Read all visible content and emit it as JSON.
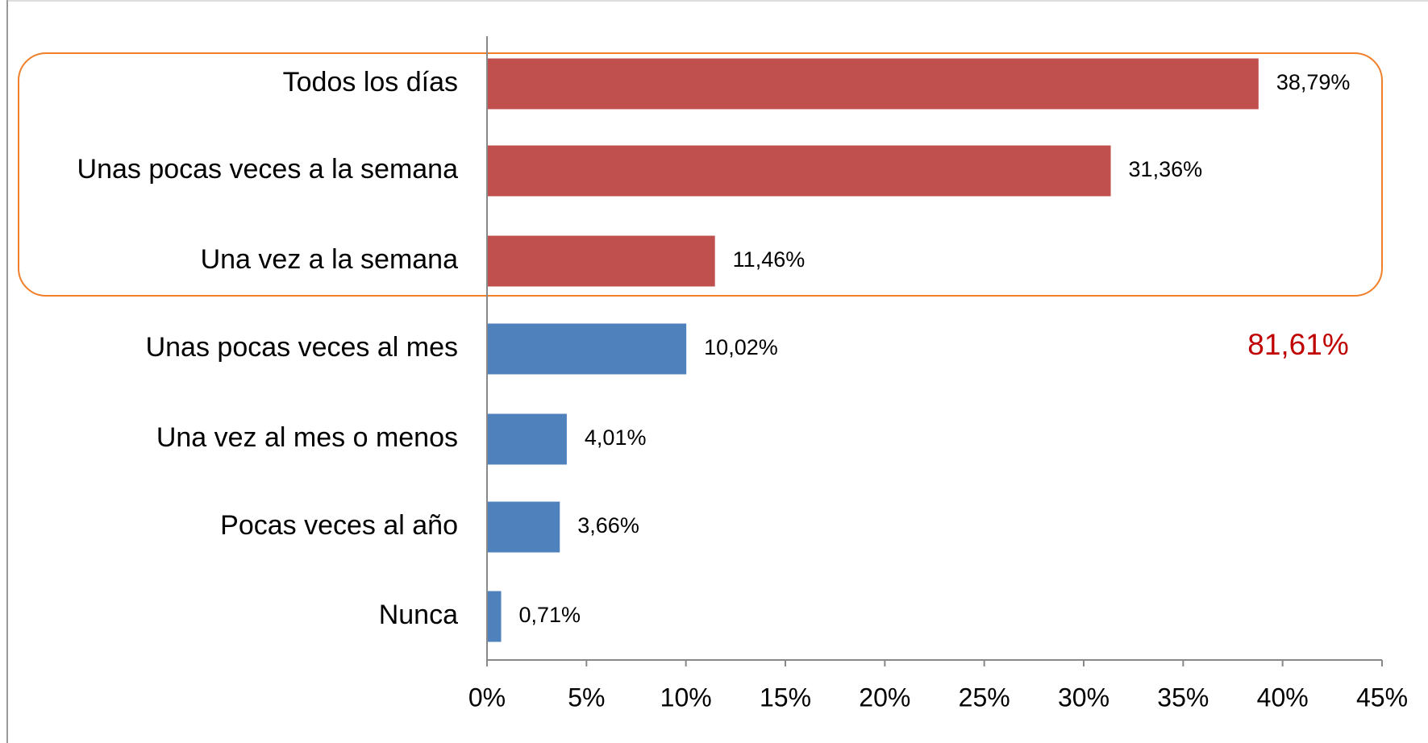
{
  "chart_data": {
    "type": "bar",
    "orientation": "horizontal",
    "categories": [
      "Todos los días",
      "Unas pocas veces a la semana",
      "Una vez a la semana",
      "Unas pocas veces al mes",
      "Una vez al mes o menos",
      "Pocas veces al año",
      "Nunca"
    ],
    "values": [
      38.79,
      31.36,
      11.46,
      10.02,
      4.01,
      3.66,
      0.71
    ],
    "value_labels": [
      "38,79%",
      "31,36%",
      "11,46%",
      "10,02%",
      "4,01%",
      "3,66%",
      "0,71%"
    ],
    "colors": [
      "#c0504d",
      "#c0504d",
      "#c0504d",
      "#4f81bd",
      "#4f81bd",
      "#4f81bd",
      "#4f81bd"
    ],
    "xlim": [
      0,
      45
    ],
    "xticks": [
      {
        "value": 0,
        "label": "0%"
      },
      {
        "value": 5,
        "label": "5%"
      },
      {
        "value": 10,
        "label": "10%"
      },
      {
        "value": 15,
        "label": "15%"
      },
      {
        "value": 20,
        "label": "20%"
      },
      {
        "value": 25,
        "label": "25%"
      },
      {
        "value": 30,
        "label": "30%"
      },
      {
        "value": 35,
        "label": "35%"
      },
      {
        "value": 40,
        "label": "40%"
      },
      {
        "value": 45,
        "label": "45%"
      }
    ],
    "annotation": "81,61%"
  }
}
